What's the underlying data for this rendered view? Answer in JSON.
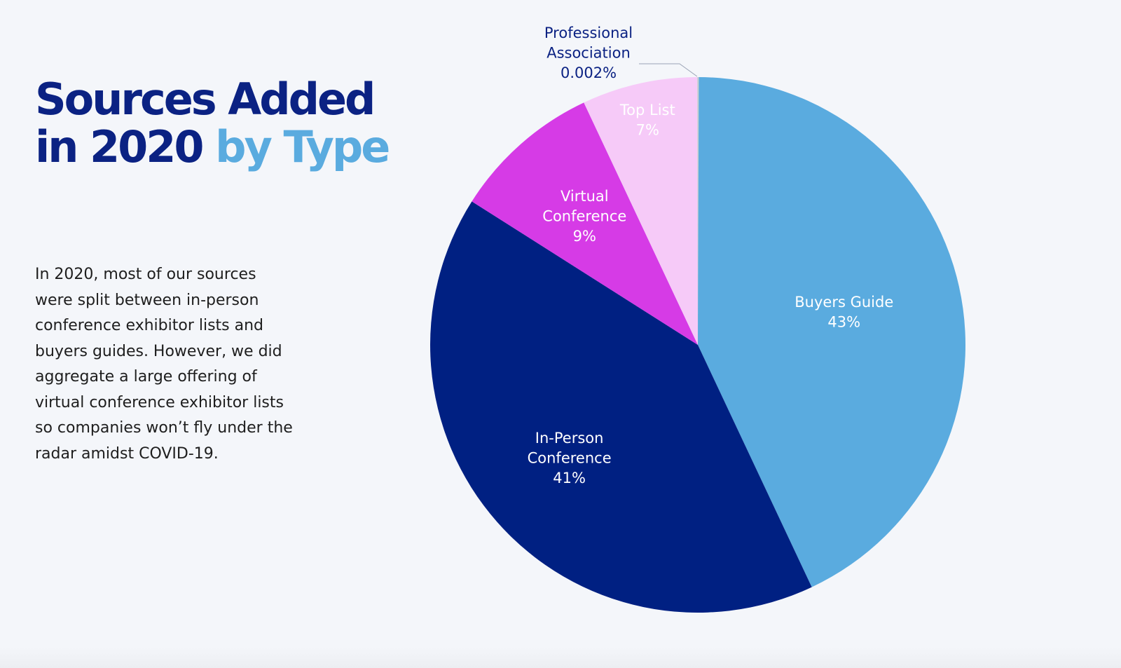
{
  "title": {
    "part1": "Sources Added",
    "part2": "in 2020",
    "part3": "by Type"
  },
  "description": "In 2020, most of our sources were split between in-person conference exhibitor lists and buyers guides. However, we did aggregate a large offering of virtual conference exhibitor lists so companies won’t fly under the radar amidst COVID-19.",
  "chart_data": {
    "type": "pie",
    "title": "Sources Added in 2020 by Type",
    "start": "top",
    "direction": "clockwise",
    "slices": [
      {
        "label_lines": [
          "Buyers Guide"
        ],
        "display": "43%",
        "value": 43,
        "color": "#5aabdf"
      },
      {
        "label_lines": [
          "In-Person",
          "Conference"
        ],
        "display": "41%",
        "value": 41,
        "color": "#002082"
      },
      {
        "label_lines": [
          "Virtual",
          "Conference"
        ],
        "display": "9%",
        "value": 9,
        "color": "#d63be6"
      },
      {
        "label_lines": [
          "Top List"
        ],
        "display": "7%",
        "value": 7,
        "color": "#f6caf8"
      },
      {
        "label_lines": [
          "Professional",
          "Association"
        ],
        "display": "0.002%",
        "value": 0.002,
        "color": "#c7d0d2"
      }
    ]
  }
}
